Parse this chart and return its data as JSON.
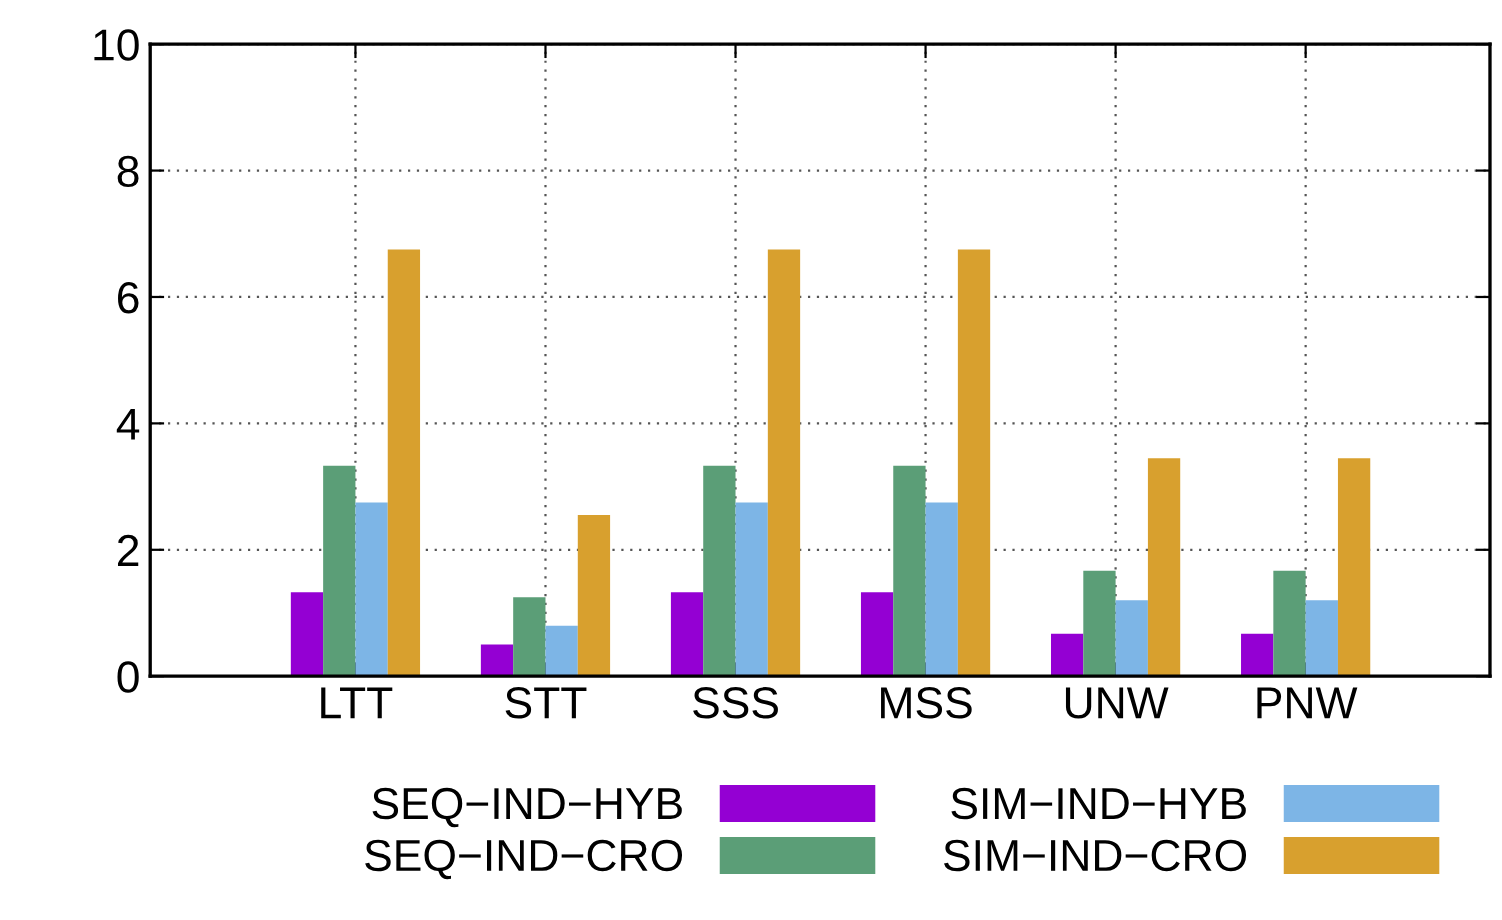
{
  "chart_data": {
    "type": "bar",
    "categories": [
      "LTT",
      "STT",
      "SSS",
      "MSS",
      "UNW",
      "PNW"
    ],
    "series": [
      {
        "name": "SEQ−IND−HYB",
        "color": "#9400d3",
        "values": [
          1.33,
          0.5,
          1.33,
          1.33,
          0.67,
          0.67
        ]
      },
      {
        "name": "SEQ−IND−CRO",
        "color": "#5b9e77",
        "values": [
          3.33,
          1.25,
          3.33,
          3.33,
          1.67,
          1.67
        ]
      },
      {
        "name": "SIM−IND−HYB",
        "color": "#7db5e6",
        "values": [
          2.75,
          0.8,
          2.75,
          2.75,
          1.2,
          1.2
        ]
      },
      {
        "name": "SIM−IND−CRO",
        "color": "#d8a02e",
        "values": [
          6.75,
          2.55,
          6.75,
          6.75,
          3.45,
          3.45
        ]
      }
    ],
    "ylim": [
      0,
      10
    ],
    "yticks": [
      0,
      2,
      4,
      6,
      8,
      10
    ],
    "grid": true,
    "legend": "bottom"
  }
}
